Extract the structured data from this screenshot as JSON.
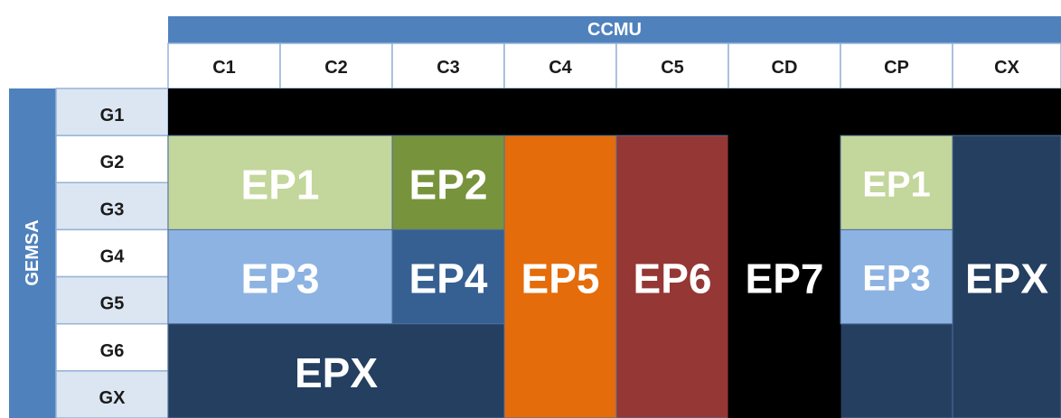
{
  "header": {
    "top": "CCMU",
    "side": "GEMSA"
  },
  "columns": [
    "C1",
    "C2",
    "C3",
    "C4",
    "C5",
    "CD",
    "CP",
    "CX"
  ],
  "rows": [
    "G1",
    "G2",
    "G3",
    "G4",
    "G5",
    "G6",
    "GX"
  ],
  "blocks": [
    {
      "label": "EP1"
    },
    {
      "label": "EP2"
    },
    {
      "label": "EP3"
    },
    {
      "label": "EP4"
    },
    {
      "label": "EPX"
    },
    {
      "label": "EP5"
    },
    {
      "label": "EP6"
    },
    {
      "label": "EP7"
    },
    {
      "label": "EP1"
    },
    {
      "label": "EP3"
    },
    {
      "label": "EPX"
    }
  ]
}
